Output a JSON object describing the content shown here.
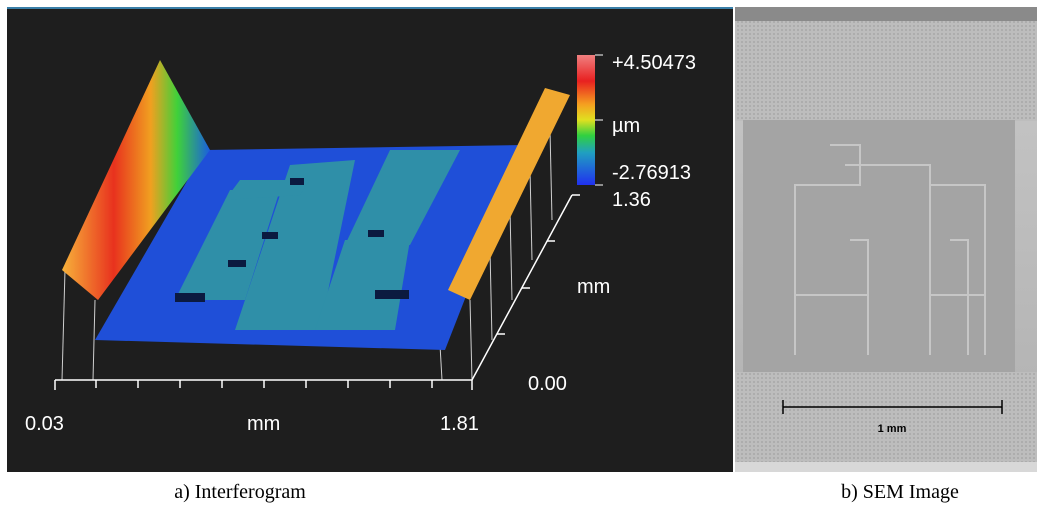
{
  "panels": [
    {
      "labels": {
        "colorbar_max": "+4.50473",
        "colorbar_unit": "µm",
        "colorbar_min": "-2.76913",
        "y_max": "1.36",
        "y_unit": "mm",
        "y_min": "0.00",
        "x_min": "0.03",
        "x_unit": "mm",
        "x_max": "1.81"
      },
      "caption": "a) Interferogram"
    },
    {
      "scale_bar": "1 mm",
      "caption": "b) SEM Image"
    }
  ]
}
